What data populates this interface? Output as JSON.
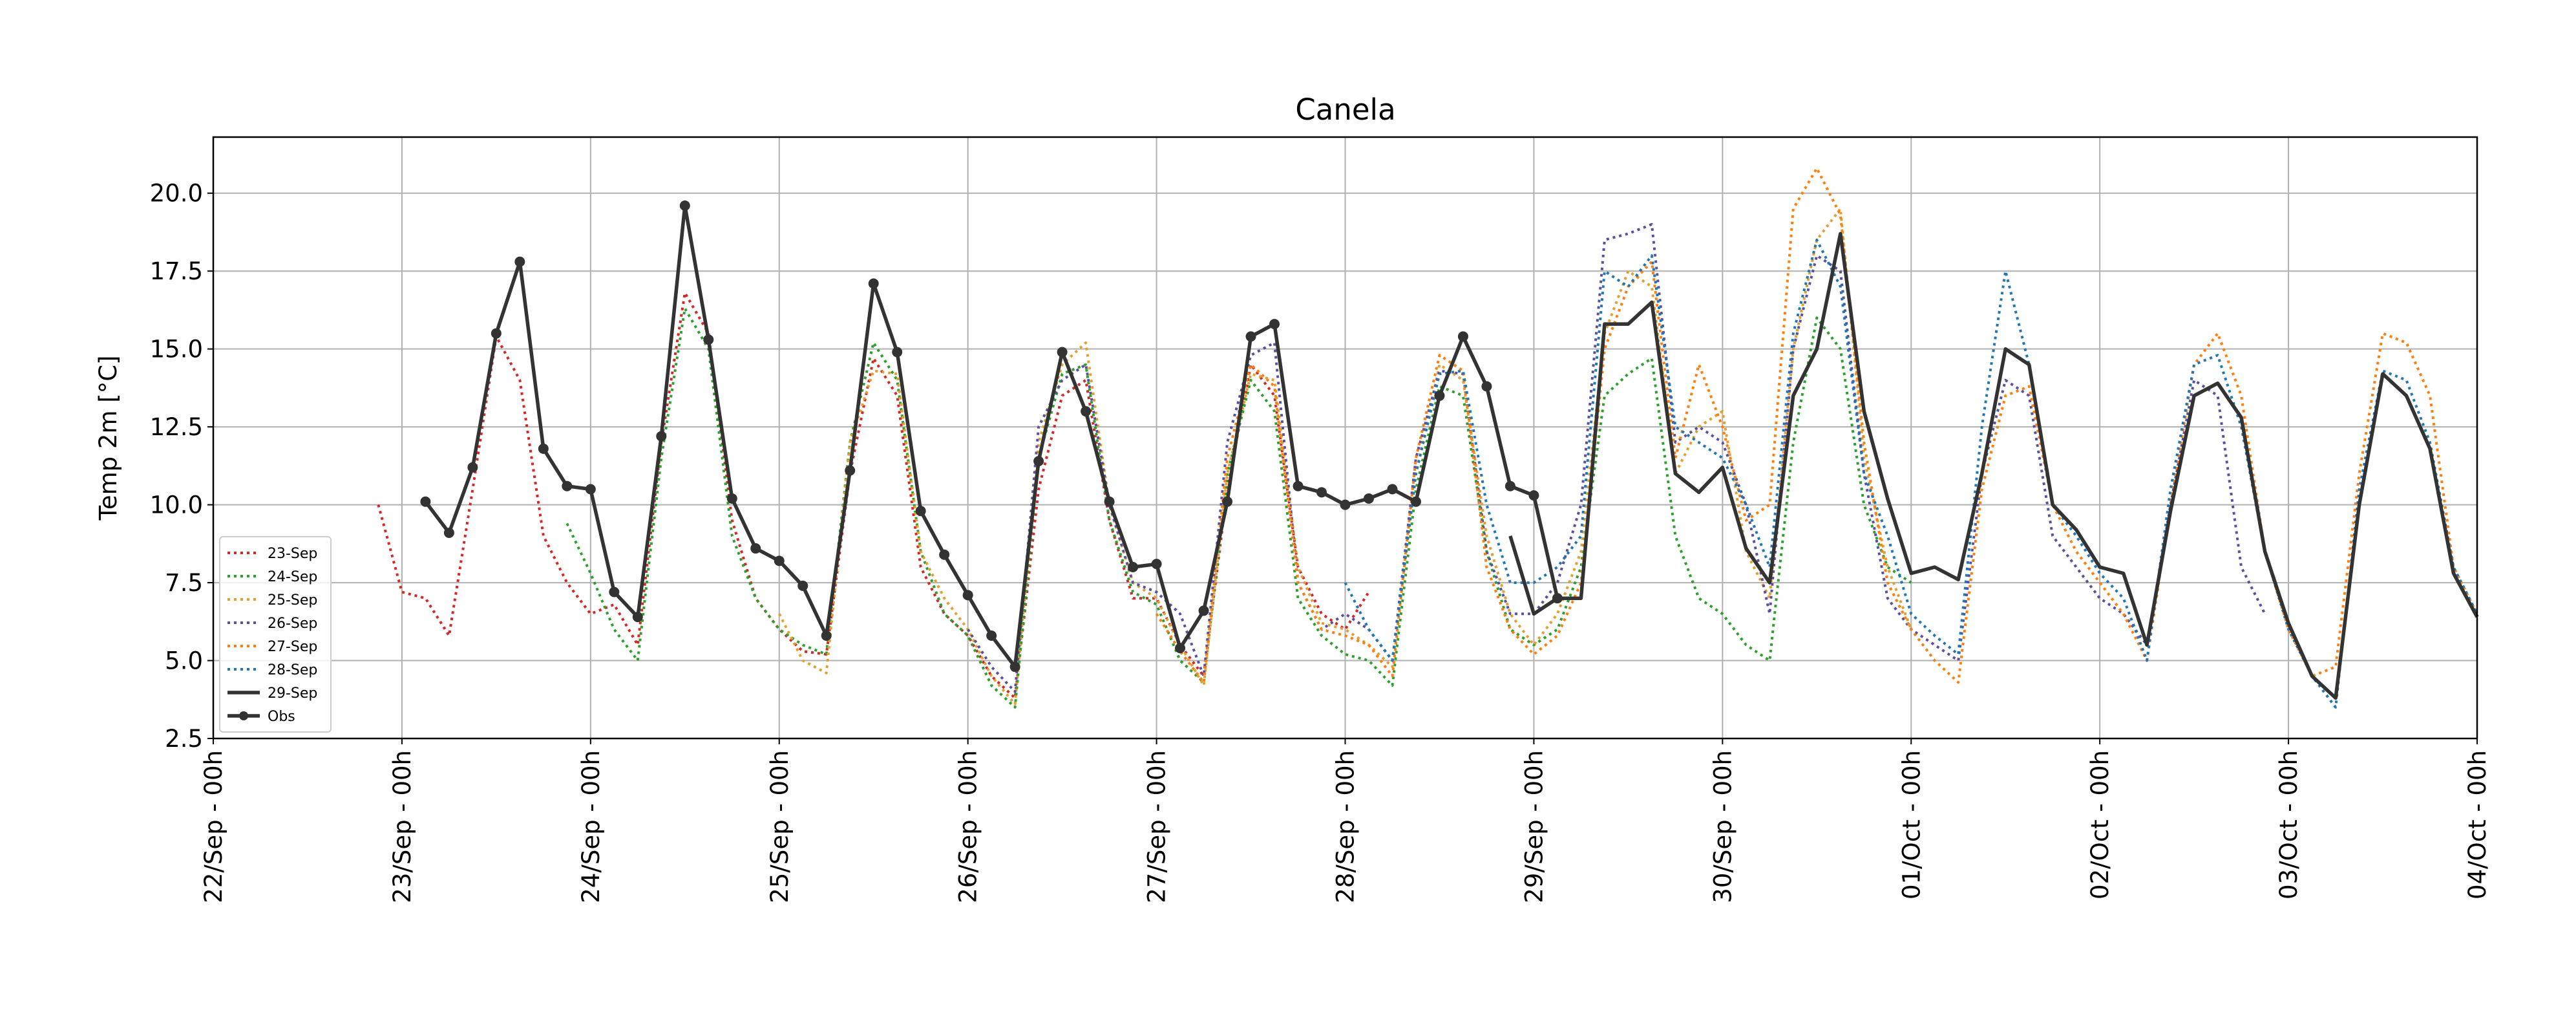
{
  "chart_data": {
    "type": "line",
    "title": "Canela",
    "y_label": "Temp 2m [°C]",
    "x": [
      0,
      3,
      6,
      9,
      12,
      15,
      18,
      21,
      24,
      27,
      30,
      33,
      36,
      39,
      42,
      45,
      48,
      51,
      54,
      57,
      60,
      63,
      66,
      69,
      72,
      75,
      78,
      81,
      84,
      87,
      90,
      93,
      96,
      99,
      102,
      105,
      108,
      111,
      114,
      117,
      120,
      123,
      126,
      129,
      132,
      135,
      138,
      141,
      144,
      147,
      150,
      153,
      156,
      159,
      162,
      165,
      168,
      171,
      174,
      177,
      180,
      183,
      186,
      189,
      192,
      195,
      198,
      201,
      204,
      207,
      210,
      213,
      216,
      219,
      222,
      225,
      228,
      231,
      234,
      237,
      240,
      243,
      246,
      249,
      252,
      255,
      258,
      261,
      264,
      267,
      270,
      273,
      276,
      279,
      282,
      285,
      288
    ],
    "xlim": [
      0,
      288
    ],
    "xticks": [
      {
        "value": 0,
        "label": "22/Sep - 00h"
      },
      {
        "value": 24,
        "label": "23/Sep - 00h"
      },
      {
        "value": 48,
        "label": "24/Sep - 00h"
      },
      {
        "value": 72,
        "label": "25/Sep - 00h"
      },
      {
        "value": 96,
        "label": "26/Sep - 00h"
      },
      {
        "value": 120,
        "label": "27/Sep - 00h"
      },
      {
        "value": 144,
        "label": "28/Sep - 00h"
      },
      {
        "value": 168,
        "label": "29/Sep - 00h"
      },
      {
        "value": 192,
        "label": "30/Sep - 00h"
      },
      {
        "value": 216,
        "label": "01/Oct - 00h"
      },
      {
        "value": 240,
        "label": "02/Oct - 00h"
      },
      {
        "value": 264,
        "label": "03/Oct - 00h"
      },
      {
        "value": 288,
        "label": "04/Oct - 00h"
      }
    ],
    "ylim": [
      2.5,
      21.8
    ],
    "yticks": [
      2.5,
      {
        "value": 5,
        "label": "5.0"
      },
      7.5,
      {
        "value": 10,
        "label": "10.0"
      },
      12.5,
      {
        "value": 15,
        "label": "15.0"
      },
      17.5,
      {
        "value": 20,
        "label": "20.0"
      }
    ],
    "grid": true,
    "legend": "lower left",
    "series": [
      {
        "name": "23-Sep",
        "color": "#d62728",
        "linestyle": "dotted",
        "values": [
          null,
          null,
          null,
          null,
          null,
          null,
          null,
          10.0,
          7.2,
          7.0,
          5.8,
          10.5,
          15.4,
          14.0,
          9.0,
          7.5,
          6.5,
          6.8,
          5.5,
          12.0,
          16.8,
          15.5,
          9.5,
          7.0,
          6.0,
          5.3,
          5.2,
          11.0,
          14.7,
          13.5,
          8.0,
          6.5,
          5.8,
          4.5,
          3.8,
          10.5,
          13.5,
          14.0,
          9.5,
          7.0,
          7.0,
          5.5,
          4.5,
          10.5,
          14.5,
          13.5,
          8.0,
          6.5,
          6.0,
          7.2,
          null,
          null,
          null,
          null,
          null,
          null,
          null,
          null,
          null,
          null,
          null,
          null,
          null,
          null,
          null,
          null,
          null,
          null,
          null,
          null,
          null,
          null,
          null,
          null,
          null,
          null,
          null,
          null,
          null,
          null,
          null,
          null,
          null,
          null,
          null,
          null,
          null,
          null,
          null,
          null,
          null,
          null,
          null,
          null,
          null,
          null,
          null
        ]
      },
      {
        "name": "24-Sep",
        "color": "#2ca02c",
        "linestyle": "dotted",
        "values": [
          null,
          null,
          null,
          null,
          null,
          null,
          null,
          null,
          null,
          null,
          null,
          null,
          null,
          null,
          null,
          9.4,
          7.8,
          6.0,
          5.0,
          11.5,
          16.3,
          15.0,
          9.0,
          7.0,
          6.0,
          5.5,
          5.2,
          12.0,
          15.2,
          14.0,
          8.5,
          6.5,
          5.8,
          4.2,
          3.5,
          11.5,
          14.2,
          14.5,
          9.5,
          7.2,
          6.8,
          5.0,
          4.3,
          11.0,
          14.0,
          13.0,
          7.0,
          5.8,
          5.2,
          5.0,
          4.2,
          10.5,
          13.8,
          13.5,
          8.5,
          6.0,
          5.5,
          6.0,
          8.0,
          13.5,
          14.2,
          14.7,
          9.0,
          7.0,
          6.5,
          5.5,
          5.0,
          12.0,
          16.0,
          15.0,
          10.0,
          8.0,
          7.5,
          null,
          null,
          null,
          null,
          null,
          null,
          null,
          null,
          null,
          null,
          null,
          null,
          null,
          null,
          null,
          null,
          null,
          null,
          null,
          null,
          null,
          null,
          null,
          null
        ]
      },
      {
        "name": "25-Sep",
        "color": "#e3a032",
        "linestyle": "dotted",
        "values": [
          null,
          null,
          null,
          null,
          null,
          null,
          null,
          null,
          null,
          null,
          null,
          null,
          null,
          null,
          null,
          null,
          null,
          null,
          null,
          null,
          null,
          null,
          null,
          null,
          6.5,
          5.0,
          4.6,
          12.0,
          14.3,
          14.2,
          8.5,
          7.0,
          6.0,
          4.5,
          3.6,
          12.0,
          14.5,
          15.2,
          10.0,
          7.5,
          7.0,
          5.5,
          4.2,
          11.0,
          14.2,
          14.0,
          8.0,
          6.2,
          6.0,
          5.5,
          4.8,
          11.0,
          14.5,
          14.0,
          9.0,
          6.5,
          5.5,
          6.5,
          8.5,
          15.5,
          17.5,
          17.0,
          11.0,
          12.5,
          13.0,
          8.5,
          7.0,
          15.0,
          18.5,
          19.5,
          11.5,
          8.0,
          6.0,
          null,
          null,
          null,
          null,
          null,
          null,
          null,
          null,
          null,
          null,
          null,
          null,
          null,
          null,
          null,
          null,
          null,
          null,
          null,
          null,
          null,
          null,
          null,
          null
        ]
      },
      {
        "name": "26-Sep",
        "color": "#5b4f9e",
        "linestyle": "dotted",
        "values": [
          null,
          null,
          null,
          null,
          null,
          null,
          null,
          null,
          null,
          null,
          null,
          null,
          null,
          null,
          null,
          null,
          null,
          null,
          null,
          null,
          null,
          null,
          null,
          null,
          null,
          null,
          null,
          null,
          null,
          null,
          null,
          null,
          6.0,
          4.8,
          4.0,
          12.5,
          14.0,
          14.5,
          10.0,
          7.5,
          7.2,
          6.5,
          4.5,
          12.0,
          14.8,
          15.2,
          7.5,
          6.0,
          6.5,
          6.0,
          5.0,
          11.5,
          14.3,
          14.2,
          8.5,
          6.5,
          6.5,
          7.5,
          10.0,
          18.5,
          18.7,
          19.0,
          12.0,
          12.5,
          12.0,
          10.0,
          6.5,
          15.0,
          18.0,
          17.5,
          11.0,
          7.0,
          6.0,
          5.5,
          5.0,
          11.0,
          14.0,
          13.5,
          9.0,
          8.0,
          7.0,
          6.5,
          5.5,
          10.0,
          14.0,
          13.5,
          8.0,
          6.5,
          null,
          null,
          null,
          null,
          null,
          null,
          null,
          null,
          null
        ]
      },
      {
        "name": "27-Sep",
        "color": "#ff7f0e",
        "linestyle": "dotted",
        "values": [
          null,
          null,
          null,
          null,
          null,
          null,
          null,
          null,
          null,
          null,
          null,
          null,
          null,
          null,
          null,
          null,
          null,
          null,
          null,
          null,
          null,
          null,
          null,
          null,
          null,
          null,
          null,
          null,
          null,
          null,
          null,
          null,
          null,
          null,
          null,
          null,
          null,
          null,
          null,
          null,
          6.5,
          5.3,
          4.3,
          11.5,
          14.5,
          13.8,
          7.5,
          6.0,
          5.8,
          5.5,
          4.5,
          11.5,
          14.8,
          14.3,
          8.0,
          6.0,
          5.2,
          5.8,
          7.5,
          15.0,
          17.0,
          17.8,
          11.5,
          14.5,
          12.5,
          9.5,
          10.0,
          19.5,
          20.8,
          19.3,
          12.0,
          7.5,
          6.0,
          5.0,
          4.3,
          10.5,
          13.5,
          13.8,
          10.0,
          8.5,
          7.5,
          6.5,
          5.0,
          10.0,
          14.5,
          15.5,
          13.5,
          8.5,
          6.0,
          4.5,
          4.8,
          11.0,
          15.5,
          15.2,
          13.5,
          8.0,
          6.5
        ]
      },
      {
        "name": "28-Sep",
        "color": "#1f77b4",
        "linestyle": "dotted",
        "values": [
          null,
          null,
          null,
          null,
          null,
          null,
          null,
          null,
          null,
          null,
          null,
          null,
          null,
          null,
          null,
          null,
          null,
          null,
          null,
          null,
          null,
          null,
          null,
          null,
          null,
          null,
          null,
          null,
          null,
          null,
          null,
          null,
          null,
          null,
          null,
          null,
          null,
          null,
          null,
          null,
          null,
          null,
          null,
          null,
          null,
          null,
          null,
          null,
          7.5,
          6.0,
          5.0,
          11.0,
          14.2,
          14.3,
          10.0,
          7.5,
          7.5,
          8.0,
          9.0,
          17.5,
          17.0,
          18.0,
          12.5,
          12.0,
          11.5,
          10.0,
          8.0,
          15.5,
          18.5,
          17.0,
          11.0,
          9.0,
          6.5,
          5.8,
          5.2,
          12.5,
          17.5,
          14.5,
          10.0,
          9.0,
          7.8,
          7.0,
          5.0,
          10.5,
          14.5,
          14.8,
          12.5,
          8.5,
          6.0,
          4.5,
          3.5,
          10.5,
          14.3,
          14.0,
          12.0,
          8.0,
          6.5
        ]
      },
      {
        "name": "29-Sep",
        "color": "#333333",
        "linestyle": "solid",
        "values": [
          null,
          null,
          null,
          null,
          null,
          null,
          null,
          null,
          null,
          null,
          null,
          null,
          null,
          null,
          null,
          null,
          null,
          null,
          null,
          null,
          null,
          null,
          null,
          null,
          null,
          null,
          null,
          null,
          null,
          null,
          null,
          null,
          null,
          null,
          null,
          null,
          null,
          null,
          null,
          null,
          null,
          null,
          null,
          null,
          null,
          null,
          null,
          null,
          null,
          null,
          null,
          null,
          null,
          null,
          null,
          9.0,
          6.5,
          7.0,
          7.0,
          15.8,
          15.8,
          16.5,
          11.0,
          10.4,
          11.2,
          8.6,
          7.5,
          13.5,
          15.0,
          18.7,
          13.0,
          10.2,
          7.8,
          8.0,
          7.6,
          11.0,
          15.0,
          14.5,
          10.0,
          9.2,
          8.0,
          7.8,
          5.5,
          9.8,
          13.5,
          13.9,
          12.8,
          8.5,
          6.2,
          4.5,
          3.8,
          10.0,
          14.2,
          13.5,
          11.8,
          7.8,
          6.4
        ]
      },
      {
        "name": "Obs",
        "color": "#333333",
        "linestyle": "solid",
        "marker": "o",
        "values": [
          null,
          null,
          null,
          null,
          null,
          null,
          null,
          null,
          null,
          10.1,
          9.1,
          11.2,
          15.5,
          17.8,
          11.8,
          10.6,
          10.5,
          7.2,
          6.4,
          12.2,
          19.6,
          15.3,
          10.2,
          8.6,
          8.2,
          7.4,
          5.8,
          11.1,
          17.1,
          14.9,
          9.8,
          8.4,
          7.1,
          5.8,
          4.8,
          11.4,
          14.9,
          13.0,
          10.1,
          8.0,
          8.1,
          5.4,
          6.6,
          10.1,
          15.4,
          15.8,
          10.6,
          10.4,
          10.0,
          10.2,
          10.5,
          10.1,
          13.5,
          15.4,
          13.8,
          10.6,
          10.3,
          7.0,
          null,
          null,
          null,
          null,
          null,
          null,
          null,
          null,
          null,
          null,
          null,
          null,
          null,
          null,
          null,
          null,
          null,
          null,
          null,
          null,
          null,
          null,
          null,
          null,
          null,
          null,
          null,
          null,
          null,
          null,
          null,
          null,
          null,
          null,
          null,
          null,
          null,
          null,
          null
        ]
      }
    ]
  }
}
